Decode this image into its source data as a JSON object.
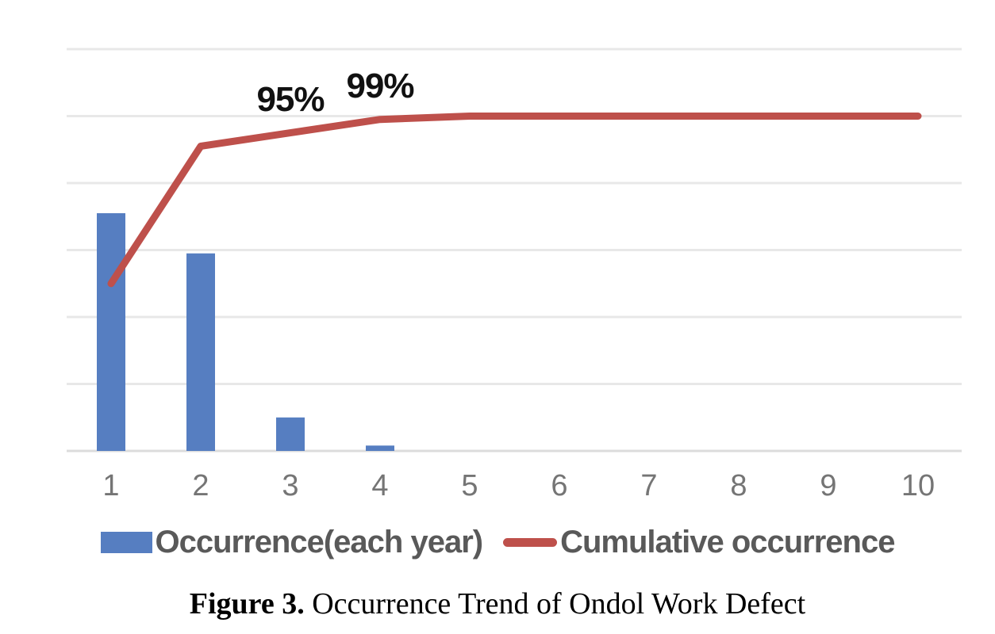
{
  "chart_data": {
    "type": "combo",
    "subtype": "pareto",
    "title": "",
    "categories": [
      "1",
      "2",
      "3",
      "4",
      "5",
      "6",
      "7",
      "8",
      "9",
      "10"
    ],
    "series": [
      {
        "name": "Occurrence(each year)",
        "type": "bar",
        "color": "#567EC1",
        "axis_note": "left axis has no visible tick labels; values estimated in gridline units",
        "axis_range": [
          0,
          6
        ],
        "values": [
          3.55,
          2.95,
          0.5,
          0.08,
          0,
          0,
          0,
          0,
          0,
          0
        ]
      },
      {
        "name": "Cumulative occurrence",
        "type": "line",
        "color": "#BE504B",
        "values_percent": [
          50,
          91,
          95,
          99,
          100,
          100,
          100,
          100,
          100,
          100
        ]
      }
    ],
    "data_labels": [
      {
        "text": "95%",
        "series": "Cumulative occurrence",
        "category": "3"
      },
      {
        "text": "99%",
        "series": "Cumulative occurrence",
        "category": "4"
      }
    ],
    "legend": {
      "position": "bottom"
    },
    "gridlines": {
      "horizontal": 7,
      "on": true
    },
    "ylim_percent": [
      0,
      120
    ],
    "xlabel": "",
    "ylabel": ""
  },
  "caption": {
    "label": "Figure 3.",
    "text": " Occurrence Trend of Ondol Work Defect"
  },
  "colors": {
    "bar": "#567EC1",
    "line": "#BE504B",
    "tick_label": "#757575",
    "legend_text": "#595959",
    "data_label": "#111111",
    "gridline": "#E8E8E8",
    "axis_line": "#DCDCDC",
    "background": "#FFFFFF"
  }
}
